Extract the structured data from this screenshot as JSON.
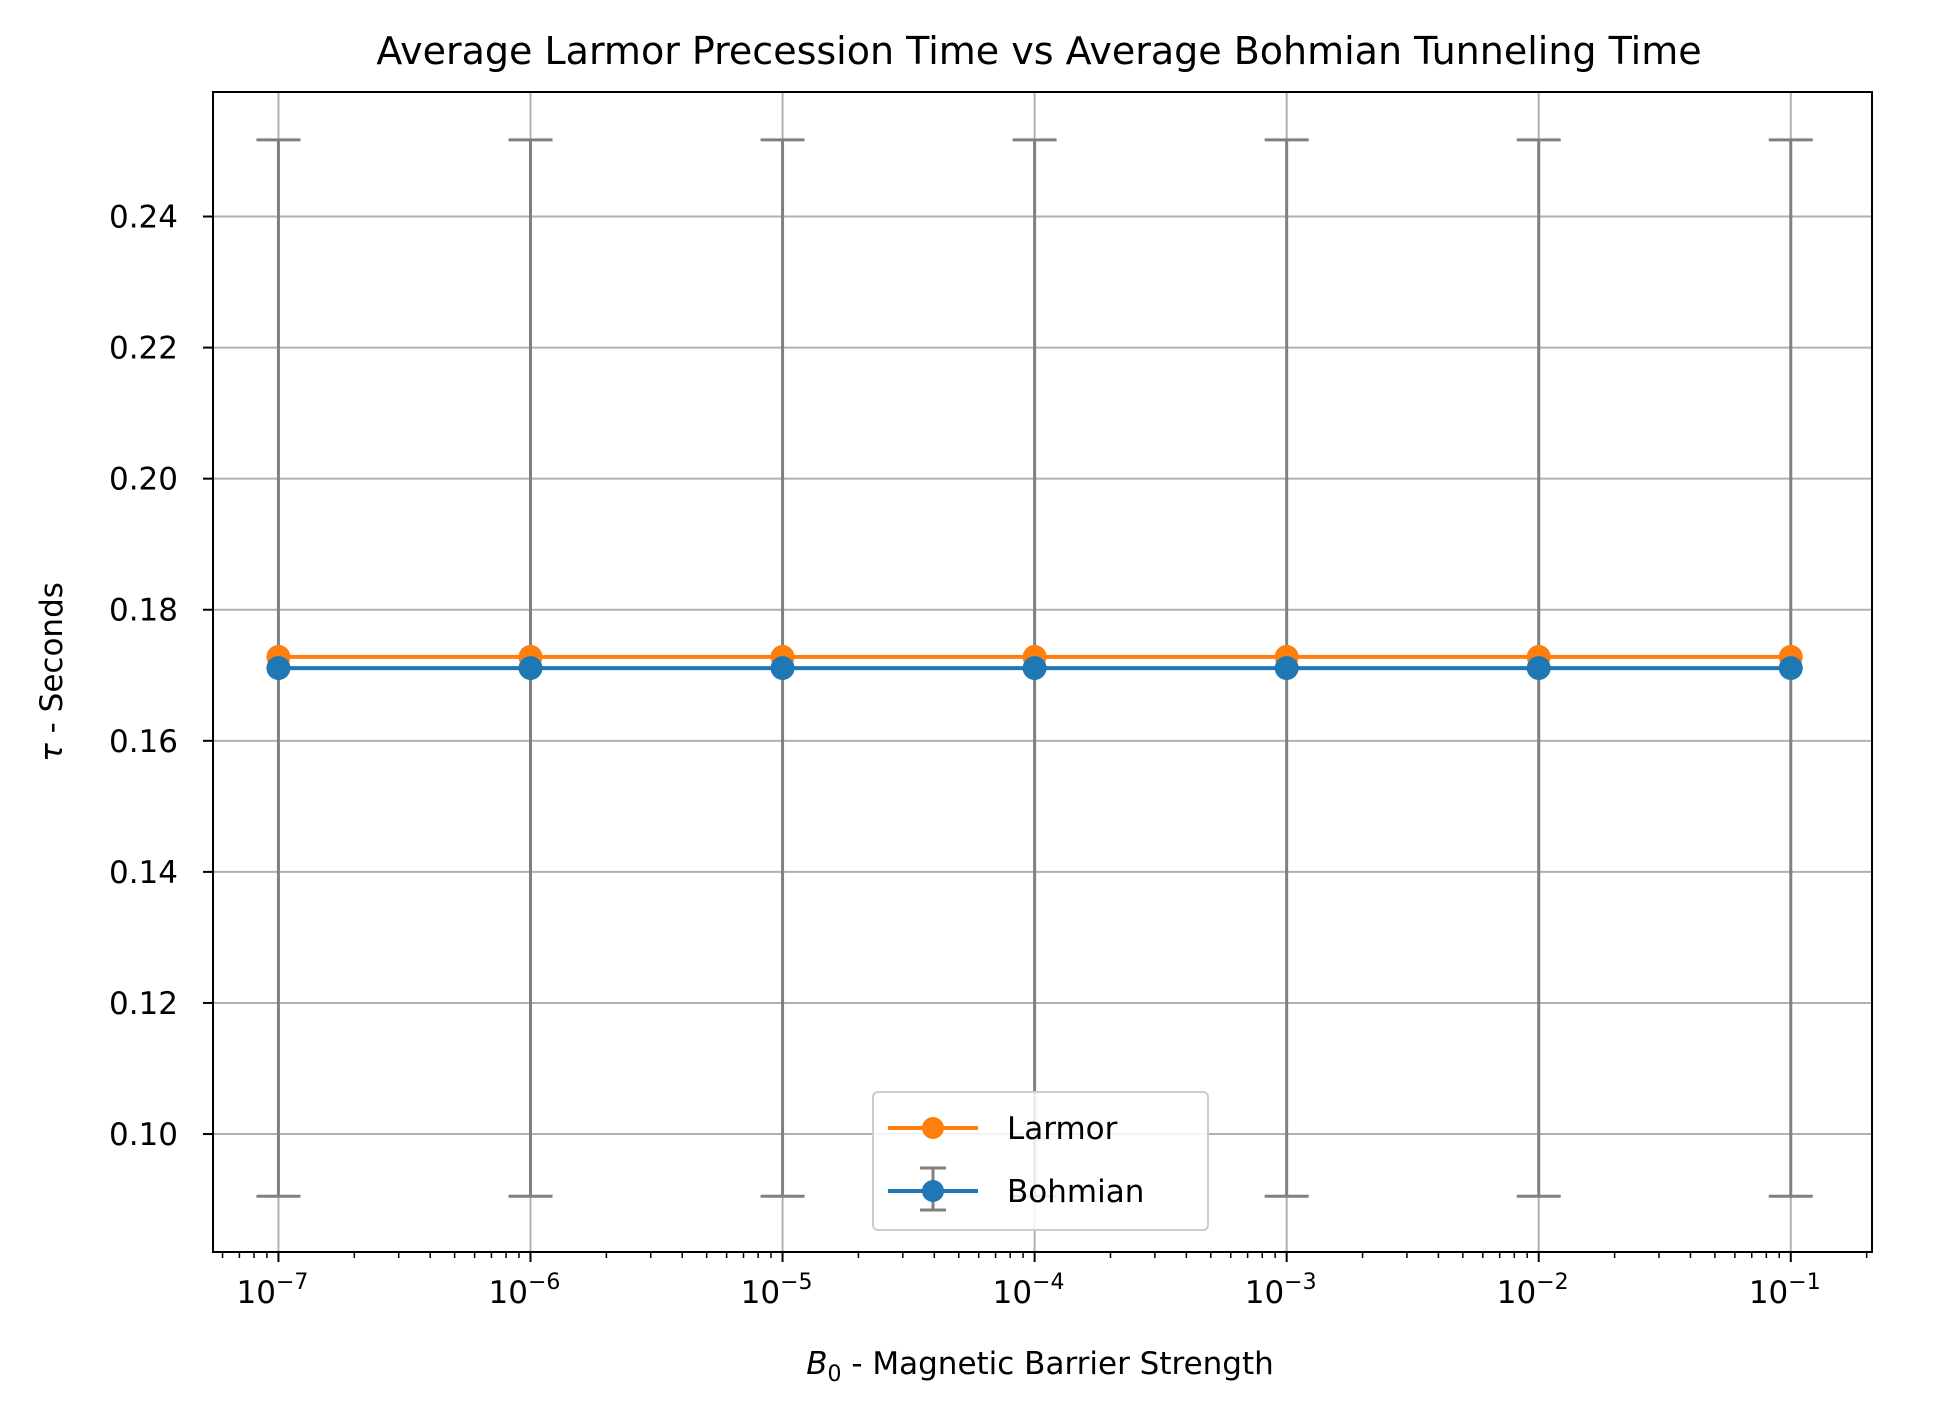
{
  "chart_data": {
    "type": "line",
    "title": "Average Larmor Precession Time vs Average Bohmian Tunneling Time",
    "xlabel": {
      "symbol": "B",
      "subscript": "0",
      "text": " - Magnetic Barrier Strength"
    },
    "ylabel": {
      "symbol": "τ",
      "text": " - Seconds"
    },
    "xscale": "log",
    "x_exponents": [
      -7,
      -6,
      -5,
      -4,
      -3,
      -2,
      -1
    ],
    "x_tick_labels": [
      {
        "base": "10",
        "exp": "−7"
      },
      {
        "base": "10",
        "exp": "−6"
      },
      {
        "base": "10",
        "exp": "−5"
      },
      {
        "base": "10",
        "exp": "−4"
      },
      {
        "base": "10",
        "exp": "−3"
      },
      {
        "base": "10",
        "exp": "−2"
      },
      {
        "base": "10",
        "exp": "−1"
      }
    ],
    "xlim": [
      5.5e-08,
      0.21
    ],
    "ylim": [
      0.082,
      0.259
    ],
    "y_ticks": [
      0.1,
      0.12,
      0.14,
      0.16,
      0.18,
      0.2,
      0.22,
      0.24
    ],
    "y_tick_labels": [
      "0.10",
      "0.12",
      "0.14",
      "0.16",
      "0.18",
      "0.20",
      "0.22",
      "0.24"
    ],
    "grid": true,
    "legend_position": "lower center",
    "series": [
      {
        "name": "Larmor",
        "color": "#ff7f0e",
        "marker": "circle",
        "x": [
          1e-07,
          1e-06,
          1e-05,
          0.0001,
          0.001,
          0.01,
          0.1
        ],
        "y": [
          0.1728,
          0.1728,
          0.1728,
          0.1728,
          0.1728,
          0.1728,
          0.1728
        ]
      },
      {
        "name": "Bohmian",
        "color": "#1f77b4",
        "marker": "circle",
        "errorbar_color": "#808080",
        "x": [
          1e-07,
          1e-06,
          1e-05,
          0.0001,
          0.001,
          0.01,
          0.1
        ],
        "y": [
          0.1711,
          0.1711,
          0.1711,
          0.1711,
          0.1711,
          0.1711,
          0.1711
        ],
        "y_err_low": [
          0.0806,
          0.0806,
          0.0806,
          0.0806,
          0.0806,
          0.0806,
          0.0806
        ],
        "y_err_high": [
          0.0806,
          0.0806,
          0.0806,
          0.0806,
          0.0806,
          0.0806,
          0.0806
        ]
      }
    ]
  }
}
